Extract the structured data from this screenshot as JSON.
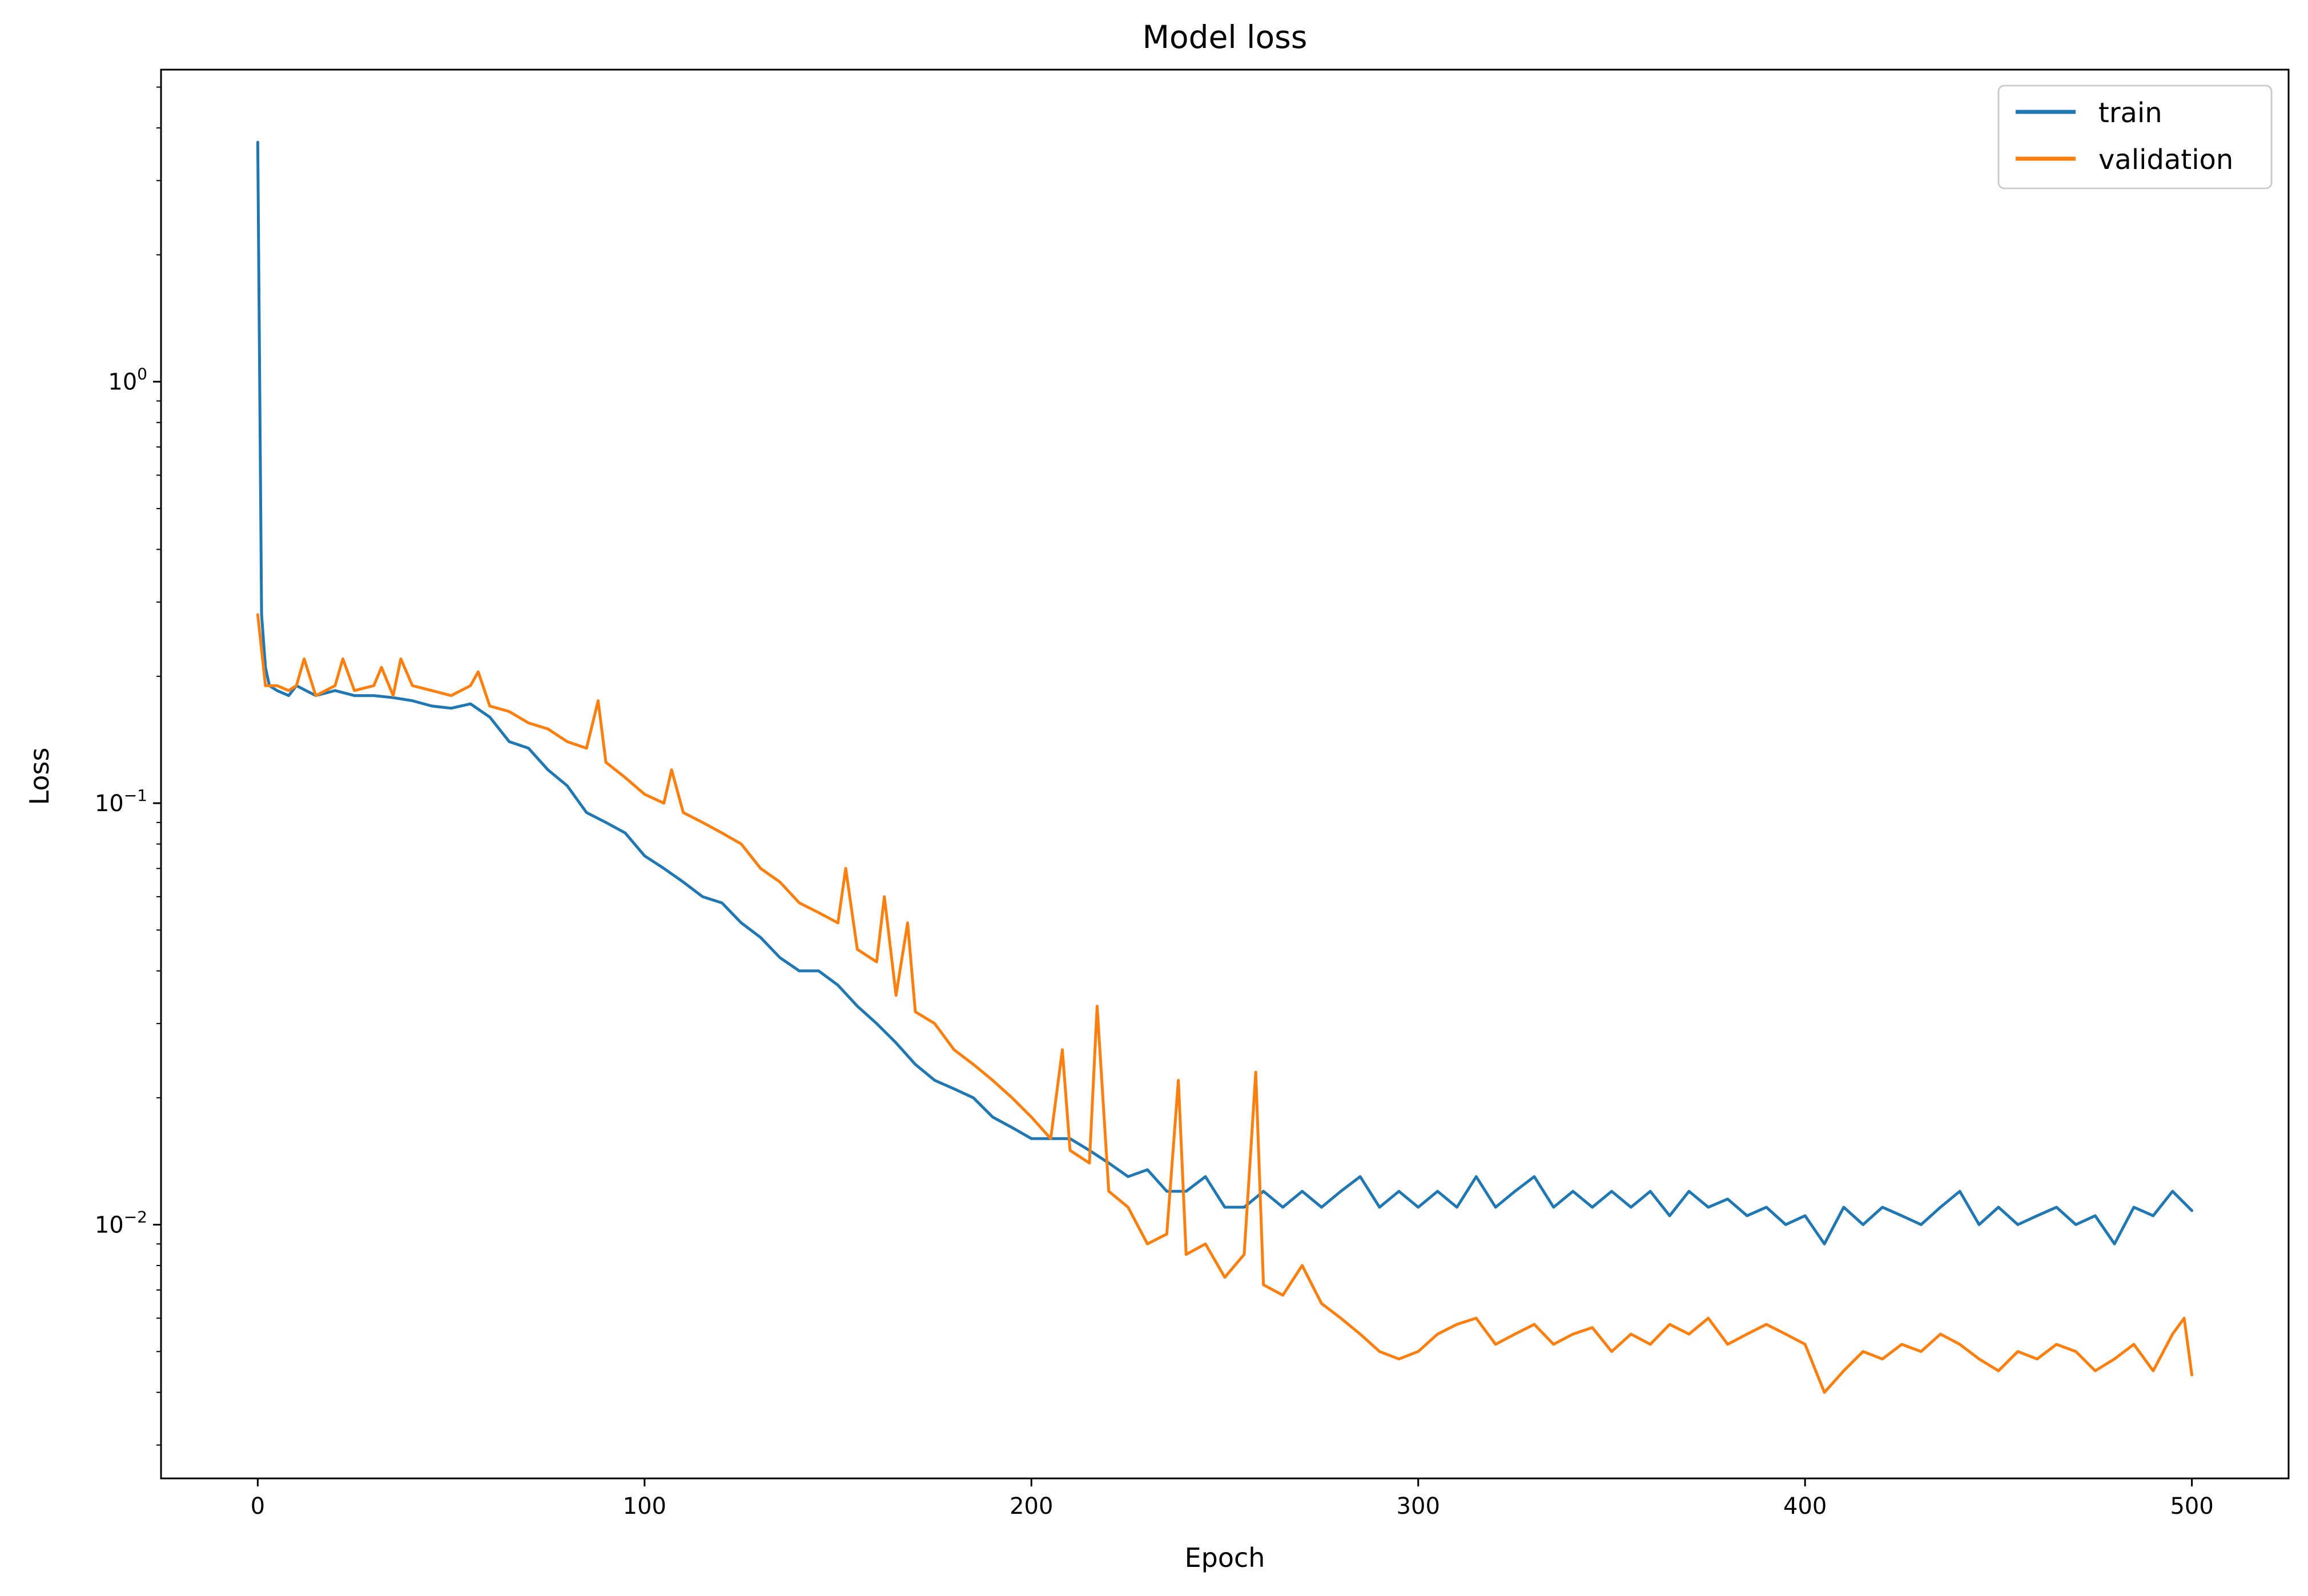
{
  "chart_data": {
    "type": "line",
    "title": "Model loss",
    "xlabel": "Epoch",
    "ylabel": "Loss",
    "xlim": [
      -25,
      525
    ],
    "ylim": [
      0.0025,
      5.5
    ],
    "yscale": "log",
    "grid": false,
    "legend_position": "top-right",
    "x_ticks": [
      0,
      100,
      200,
      300,
      400,
      500
    ],
    "y_ticks": [
      {
        "value": 1,
        "base": "10",
        "exp": "0"
      },
      {
        "value": 0.1,
        "base": "10",
        "exp": "−1"
      },
      {
        "value": 0.01,
        "base": "10",
        "exp": "−2"
      }
    ],
    "series": [
      {
        "name": "train",
        "color": "#1f77b4",
        "points": [
          [
            0,
            3.7
          ],
          [
            1,
            0.28
          ],
          [
            2,
            0.21
          ],
          [
            3,
            0.19
          ],
          [
            5,
            0.185
          ],
          [
            8,
            0.18
          ],
          [
            10,
            0.19
          ],
          [
            15,
            0.18
          ],
          [
            20,
            0.185
          ],
          [
            25,
            0.18
          ],
          [
            30,
            0.18
          ],
          [
            35,
            0.178
          ],
          [
            40,
            0.175
          ],
          [
            45,
            0.17
          ],
          [
            50,
            0.168
          ],
          [
            55,
            0.172
          ],
          [
            60,
            0.16
          ],
          [
            65,
            0.14
          ],
          [
            70,
            0.135
          ],
          [
            75,
            0.12
          ],
          [
            80,
            0.11
          ],
          [
            85,
            0.095
          ],
          [
            90,
            0.09
          ],
          [
            95,
            0.085
          ],
          [
            100,
            0.075
          ],
          [
            105,
            0.07
          ],
          [
            110,
            0.065
          ],
          [
            115,
            0.06
          ],
          [
            120,
            0.058
          ],
          [
            125,
            0.052
          ],
          [
            130,
            0.048
          ],
          [
            135,
            0.043
          ],
          [
            140,
            0.04
          ],
          [
            145,
            0.04
          ],
          [
            150,
            0.037
          ],
          [
            155,
            0.033
          ],
          [
            160,
            0.03
          ],
          [
            165,
            0.027
          ],
          [
            170,
            0.024
          ],
          [
            175,
            0.022
          ],
          [
            180,
            0.021
          ],
          [
            185,
            0.02
          ],
          [
            190,
            0.018
          ],
          [
            195,
            0.017
          ],
          [
            200,
            0.016
          ],
          [
            205,
            0.016
          ],
          [
            210,
            0.016
          ],
          [
            215,
            0.015
          ],
          [
            220,
            0.014
          ],
          [
            225,
            0.013
          ],
          [
            230,
            0.0135
          ],
          [
            235,
            0.012
          ],
          [
            240,
            0.012
          ],
          [
            245,
            0.013
          ],
          [
            250,
            0.011
          ],
          [
            255,
            0.011
          ],
          [
            260,
            0.012
          ],
          [
            265,
            0.011
          ],
          [
            270,
            0.012
          ],
          [
            275,
            0.011
          ],
          [
            280,
            0.012
          ],
          [
            285,
            0.013
          ],
          [
            290,
            0.011
          ],
          [
            295,
            0.012
          ],
          [
            300,
            0.011
          ],
          [
            305,
            0.012
          ],
          [
            310,
            0.011
          ],
          [
            315,
            0.013
          ],
          [
            320,
            0.011
          ],
          [
            325,
            0.012
          ],
          [
            330,
            0.013
          ],
          [
            335,
            0.011
          ],
          [
            340,
            0.012
          ],
          [
            345,
            0.011
          ],
          [
            350,
            0.012
          ],
          [
            355,
            0.011
          ],
          [
            360,
            0.012
          ],
          [
            365,
            0.0105
          ],
          [
            370,
            0.012
          ],
          [
            375,
            0.011
          ],
          [
            380,
            0.0115
          ],
          [
            385,
            0.0105
          ],
          [
            390,
            0.011
          ],
          [
            395,
            0.01
          ],
          [
            400,
            0.0105
          ],
          [
            405,
            0.009
          ],
          [
            410,
            0.011
          ],
          [
            415,
            0.01
          ],
          [
            420,
            0.011
          ],
          [
            425,
            0.0105
          ],
          [
            430,
            0.01
          ],
          [
            435,
            0.011
          ],
          [
            440,
            0.012
          ],
          [
            445,
            0.01
          ],
          [
            450,
            0.011
          ],
          [
            455,
            0.01
          ],
          [
            460,
            0.0105
          ],
          [
            465,
            0.011
          ],
          [
            470,
            0.01
          ],
          [
            475,
            0.0105
          ],
          [
            480,
            0.009
          ],
          [
            485,
            0.011
          ],
          [
            490,
            0.0105
          ],
          [
            495,
            0.012
          ],
          [
            500,
            0.0108
          ]
        ]
      },
      {
        "name": "validation",
        "color": "#ff7f0e",
        "points": [
          [
            0,
            0.28
          ],
          [
            2,
            0.19
          ],
          [
            5,
            0.19
          ],
          [
            8,
            0.185
          ],
          [
            10,
            0.19
          ],
          [
            12,
            0.22
          ],
          [
            15,
            0.18
          ],
          [
            20,
            0.19
          ],
          [
            22,
            0.22
          ],
          [
            25,
            0.185
          ],
          [
            30,
            0.19
          ],
          [
            32,
            0.21
          ],
          [
            35,
            0.18
          ],
          [
            37,
            0.22
          ],
          [
            40,
            0.19
          ],
          [
            45,
            0.185
          ],
          [
            50,
            0.18
          ],
          [
            55,
            0.19
          ],
          [
            57,
            0.205
          ],
          [
            60,
            0.17
          ],
          [
            65,
            0.165
          ],
          [
            70,
            0.155
          ],
          [
            75,
            0.15
          ],
          [
            80,
            0.14
          ],
          [
            85,
            0.135
          ],
          [
            88,
            0.175
          ],
          [
            90,
            0.125
          ],
          [
            95,
            0.115
          ],
          [
            100,
            0.105
          ],
          [
            105,
            0.1
          ],
          [
            107,
            0.12
          ],
          [
            110,
            0.095
          ],
          [
            115,
            0.09
          ],
          [
            120,
            0.085
          ],
          [
            125,
            0.08
          ],
          [
            130,
            0.07
          ],
          [
            135,
            0.065
          ],
          [
            140,
            0.058
          ],
          [
            145,
            0.055
          ],
          [
            150,
            0.052
          ],
          [
            152,
            0.07
          ],
          [
            155,
            0.045
          ],
          [
            160,
            0.042
          ],
          [
            162,
            0.06
          ],
          [
            165,
            0.035
          ],
          [
            168,
            0.052
          ],
          [
            170,
            0.032
          ],
          [
            175,
            0.03
          ],
          [
            180,
            0.026
          ],
          [
            185,
            0.024
          ],
          [
            190,
            0.022
          ],
          [
            195,
            0.02
          ],
          [
            200,
            0.018
          ],
          [
            205,
            0.016
          ],
          [
            208,
            0.026
          ],
          [
            210,
            0.015
          ],
          [
            215,
            0.014
          ],
          [
            217,
            0.033
          ],
          [
            220,
            0.012
          ],
          [
            225,
            0.011
          ],
          [
            230,
            0.009
          ],
          [
            235,
            0.0095
          ],
          [
            238,
            0.022
          ],
          [
            240,
            0.0085
          ],
          [
            245,
            0.009
          ],
          [
            250,
            0.0075
          ],
          [
            255,
            0.0085
          ],
          [
            258,
            0.023
          ],
          [
            260,
            0.0072
          ],
          [
            265,
            0.0068
          ],
          [
            270,
            0.008
          ],
          [
            275,
            0.0065
          ],
          [
            280,
            0.006
          ],
          [
            285,
            0.0055
          ],
          [
            290,
            0.005
          ],
          [
            295,
            0.0048
          ],
          [
            300,
            0.005
          ],
          [
            305,
            0.0055
          ],
          [
            310,
            0.0058
          ],
          [
            315,
            0.006
          ],
          [
            320,
            0.0052
          ],
          [
            325,
            0.0055
          ],
          [
            330,
            0.0058
          ],
          [
            335,
            0.0052
          ],
          [
            340,
            0.0055
          ],
          [
            345,
            0.0057
          ],
          [
            350,
            0.005
          ],
          [
            355,
            0.0055
          ],
          [
            360,
            0.0052
          ],
          [
            365,
            0.0058
          ],
          [
            370,
            0.0055
          ],
          [
            375,
            0.006
          ],
          [
            380,
            0.0052
          ],
          [
            385,
            0.0055
          ],
          [
            390,
            0.0058
          ],
          [
            395,
            0.0055
          ],
          [
            400,
            0.0052
          ],
          [
            405,
            0.004
          ],
          [
            410,
            0.0045
          ],
          [
            415,
            0.005
          ],
          [
            420,
            0.0048
          ],
          [
            425,
            0.0052
          ],
          [
            430,
            0.005
          ],
          [
            435,
            0.0055
          ],
          [
            440,
            0.0052
          ],
          [
            445,
            0.0048
          ],
          [
            450,
            0.0045
          ],
          [
            455,
            0.005
          ],
          [
            460,
            0.0048
          ],
          [
            465,
            0.0052
          ],
          [
            470,
            0.005
          ],
          [
            475,
            0.0045
          ],
          [
            480,
            0.0048
          ],
          [
            485,
            0.0052
          ],
          [
            490,
            0.0045
          ],
          [
            495,
            0.0055
          ],
          [
            498,
            0.006
          ],
          [
            500,
            0.0044
          ]
        ]
      }
    ]
  }
}
